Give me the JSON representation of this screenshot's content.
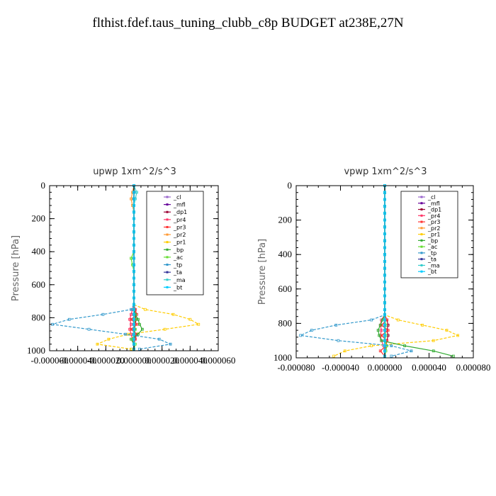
{
  "page_title": "flthist.fdef.taus_tuning_clubb_c8p  BUDGET at238E,27N",
  "chart_data": [
    {
      "type": "line",
      "title": "upwp   1xm^2/s^3",
      "ylabel": "Pressure [hPa]",
      "xlim": [
        -6e-05,
        6e-05
      ],
      "ylim": [
        0,
        1000
      ],
      "y_inverted": true,
      "x_tick_labels": [
        "-0.000060",
        "-0.000040",
        "-0.000020",
        "0.000000",
        "0.000020",
        "0.000040",
        "0.000060"
      ],
      "y_tick_labels": [
        "0",
        "200",
        "400",
        "600",
        "800",
        "1000"
      ],
      "legend_position": "top-right",
      "y": [
        0,
        40,
        80,
        120,
        160,
        200,
        240,
        280,
        320,
        360,
        400,
        440,
        480,
        520,
        560,
        600,
        640,
        680,
        720,
        750,
        780,
        810,
        840,
        870,
        900,
        930,
        960,
        990
      ],
      "series": [
        {
          "name": "_cl",
          "color": "#9966cc",
          "values": [
            0,
            0,
            0,
            0,
            0,
            0,
            0,
            0,
            0,
            0,
            0,
            0,
            0,
            0,
            0,
            0,
            0,
            0,
            0,
            0,
            0,
            0,
            0,
            0,
            0,
            0,
            0,
            0
          ]
        },
        {
          "name": "_mfl",
          "color": "#660099",
          "values": [
            0,
            0,
            0,
            0,
            0,
            0,
            0,
            0,
            0,
            0,
            0,
            0,
            0,
            0,
            0,
            0,
            0,
            0,
            0,
            0,
            0,
            0,
            0,
            0,
            0,
            0,
            0,
            0
          ]
        },
        {
          "name": "_dp1",
          "color": "#990033",
          "values": [
            0,
            0,
            0,
            0,
            0,
            0,
            0,
            0,
            0,
            0,
            0,
            0,
            0,
            0,
            0,
            0,
            0,
            0,
            0,
            5e-07,
            1e-06,
            1.5e-06,
            1e-06,
            5e-07,
            1e-06,
            5e-07,
            0,
            0
          ]
        },
        {
          "name": "_pr4",
          "color": "#ff3366",
          "values": [
            0,
            0,
            0,
            0,
            0,
            0,
            0,
            0,
            0,
            0,
            0,
            0,
            0,
            0,
            0,
            0,
            0,
            0,
            0,
            -1e-06,
            -2e-06,
            -3e-06,
            -2e-06,
            -3e-06,
            -2e-06,
            -1e-06,
            0,
            0
          ]
        },
        {
          "name": "_pr3",
          "color": "#ff3333",
          "values": [
            0,
            0,
            0,
            0,
            0,
            0,
            0,
            0,
            0,
            0,
            0,
            0,
            0,
            0,
            0,
            0,
            0,
            0,
            0,
            1e-06,
            2e-06,
            -2e-06,
            2e-06,
            -2e-06,
            2e-06,
            1e-06,
            0,
            0
          ]
        },
        {
          "name": "_pr2",
          "color": "#ff9933",
          "values": [
            0,
            -1e-06,
            -2e-06,
            -1e-06,
            0,
            0,
            0,
            0,
            0,
            0,
            0,
            0,
            0,
            0,
            0,
            0,
            0,
            0,
            0,
            0,
            0,
            0,
            0,
            0,
            0,
            0,
            0,
            0
          ]
        },
        {
          "name": "_pr1",
          "color": "#ffcc00",
          "values": [
            0,
            0,
            0,
            0,
            0,
            0,
            0,
            0,
            0,
            0,
            0,
            0,
            0,
            0,
            0,
            0,
            0,
            0,
            0,
            8e-06,
            2.8e-05,
            4e-05,
            4.6e-05,
            2.2e-05,
            -4e-06,
            -1.8e-05,
            -2.6e-05,
            -2e-06
          ]
        },
        {
          "name": "_bp",
          "color": "#33aa33",
          "values": [
            0,
            0,
            0,
            0,
            0,
            0,
            0,
            0,
            0,
            0,
            0,
            0,
            0,
            0,
            0,
            0,
            0,
            0,
            0,
            0,
            1e-06,
            3e-06,
            4e-06,
            6e-06,
            3e-06,
            -2e-06,
            0,
            0
          ]
        },
        {
          "name": "_ac",
          "color": "#66dd33",
          "values": [
            0,
            0,
            0,
            0,
            0,
            0,
            0,
            0,
            0,
            0,
            0,
            -2e-06,
            -1e-06,
            0,
            0,
            0,
            0,
            0,
            0,
            0,
            0,
            1e-06,
            0,
            1e-06,
            0,
            -1e-06,
            1e-06,
            0
          ]
        },
        {
          "name": "_tp",
          "color": "#3399cc",
          "values": [
            0,
            0,
            0,
            0,
            0,
            0,
            0,
            0,
            0,
            0,
            0,
            0,
            0,
            0,
            0,
            0,
            0,
            0,
            0,
            -2e-06,
            -2.2e-05,
            -4.6e-05,
            -5.8e-05,
            -3.2e-05,
            -6e-06,
            1.8e-05,
            2.6e-05,
            4e-06
          ]
        },
        {
          "name": "_ta",
          "color": "#333399",
          "values": [
            0,
            0,
            0,
            0,
            0,
            0,
            0,
            0,
            0,
            0,
            0,
            0,
            0,
            0,
            0,
            0,
            0,
            0,
            0,
            0,
            0,
            0,
            0,
            0,
            0,
            0,
            0,
            0
          ]
        },
        {
          "name": "_ma",
          "color": "#33cccc",
          "values": [
            0,
            2e-06,
            1e-06,
            0,
            0,
            0,
            0,
            0,
            0,
            0,
            0,
            0,
            0,
            0,
            0,
            0,
            0,
            0,
            0,
            0,
            0,
            0,
            0,
            0,
            0,
            0,
            0,
            0
          ]
        },
        {
          "name": "_bt",
          "color": "#00ccff",
          "values": [
            0,
            0,
            0,
            0,
            0,
            0,
            0,
            0,
            0,
            0,
            0,
            0,
            0,
            0,
            0,
            0,
            0,
            0,
            0,
            0,
            0,
            0,
            0,
            0,
            0,
            0,
            0,
            0
          ]
        }
      ]
    },
    {
      "type": "line",
      "title": "vpwp   1xm^2/s^3",
      "ylabel": "Pressure [hPa]",
      "xlim": [
        -8e-05,
        8e-05
      ],
      "ylim": [
        0,
        1000
      ],
      "y_inverted": true,
      "x_tick_labels": [
        "-0.000080",
        "-0.000040",
        "0.000000",
        "0.000040",
        "0.000080"
      ],
      "y_tick_labels": [
        "0",
        "200",
        "400",
        "600",
        "800",
        "1000"
      ],
      "legend_position": "top-right",
      "y": [
        0,
        40,
        80,
        120,
        160,
        200,
        240,
        280,
        320,
        360,
        400,
        440,
        480,
        520,
        560,
        600,
        640,
        680,
        720,
        750,
        780,
        810,
        840,
        870,
        900,
        930,
        960,
        990
      ],
      "series": [
        {
          "name": "_cl",
          "color": "#9966cc",
          "values": [
            0,
            0,
            0,
            0,
            0,
            0,
            0,
            0,
            0,
            0,
            0,
            0,
            0,
            0,
            0,
            0,
            0,
            0,
            0,
            0,
            0,
            0,
            0,
            0,
            0,
            0,
            0,
            0
          ]
        },
        {
          "name": "_mfl",
          "color": "#660099",
          "values": [
            0,
            0,
            0,
            0,
            0,
            0,
            0,
            0,
            0,
            0,
            0,
            0,
            0,
            0,
            0,
            0,
            0,
            0,
            0,
            0,
            0,
            0,
            0,
            0,
            0,
            0,
            0,
            0
          ]
        },
        {
          "name": "_dp1",
          "color": "#990033",
          "values": [
            0,
            0,
            0,
            0,
            0,
            0,
            0,
            0,
            0,
            0,
            0,
            0,
            0,
            0,
            0,
            0,
            0,
            0,
            0,
            0,
            2e-06,
            3e-06,
            2e-06,
            3e-06,
            2e-06,
            1e-06,
            0,
            0
          ]
        },
        {
          "name": "_pr4",
          "color": "#ff3366",
          "values": [
            0,
            0,
            0,
            0,
            0,
            0,
            0,
            0,
            0,
            0,
            0,
            0,
            0,
            0,
            0,
            0,
            0,
            0,
            0,
            0,
            -3e-06,
            -4e-06,
            -3e-06,
            -4e-06,
            -3e-06,
            -1e-06,
            0,
            0
          ]
        },
        {
          "name": "_pr3",
          "color": "#ff3333",
          "values": [
            0,
            0,
            0,
            0,
            0,
            0,
            0,
            0,
            0,
            0,
            0,
            0,
            0,
            0,
            0,
            0,
            0,
            0,
            0,
            0,
            2e-06,
            -3e-06,
            3e-06,
            -3e-06,
            2e-06,
            1e-06,
            -4e-06,
            0
          ]
        },
        {
          "name": "_pr2",
          "color": "#ff9933",
          "values": [
            0,
            0,
            0,
            0,
            0,
            0,
            0,
            0,
            0,
            0,
            0,
            0,
            0,
            0,
            0,
            0,
            0,
            0,
            0,
            0,
            0,
            0,
            0,
            0,
            0,
            0,
            0,
            0
          ]
        },
        {
          "name": "_pr1",
          "color": "#ffcc00",
          "values": [
            0,
            0,
            0,
            0,
            0,
            0,
            0,
            0,
            0,
            0,
            0,
            0,
            0,
            0,
            0,
            0,
            0,
            0,
            0,
            0,
            1.2e-05,
            3.4e-05,
            5.6e-05,
            6.6e-05,
            4.4e-05,
            -1.2e-05,
            -3.6e-05,
            -4.6e-05
          ]
        },
        {
          "name": "_bp",
          "color": "#33aa33",
          "values": [
            0,
            0,
            0,
            0,
            0,
            0,
            0,
            0,
            0,
            0,
            0,
            0,
            0,
            0,
            0,
            0,
            0,
            0,
            0,
            0,
            -2e-06,
            -4e-06,
            -6e-06,
            -5e-06,
            -3e-06,
            1.8e-05,
            4.4e-05,
            6.2e-05
          ]
        },
        {
          "name": "_ac",
          "color": "#66dd33",
          "values": [
            0,
            0,
            0,
            0,
            0,
            0,
            0,
            0,
            0,
            0,
            0,
            0,
            0,
            0,
            0,
            0,
            0,
            0,
            0,
            0,
            0,
            1e-06,
            0,
            1e-06,
            0,
            2e-06,
            1e-06,
            0
          ]
        },
        {
          "name": "_tp",
          "color": "#3399cc",
          "values": [
            0,
            0,
            0,
            0,
            0,
            0,
            0,
            0,
            0,
            0,
            0,
            0,
            0,
            0,
            0,
            0,
            0,
            0,
            0,
            0,
            -1.2e-05,
            -4.4e-05,
            -6.6e-05,
            -7.6e-05,
            -4.2e-05,
            6e-06,
            2.4e-05,
            6e-06
          ]
        },
        {
          "name": "_ta",
          "color": "#333399",
          "values": [
            0,
            0,
            0,
            0,
            0,
            0,
            0,
            0,
            0,
            0,
            0,
            0,
            0,
            0,
            0,
            0,
            0,
            0,
            0,
            0,
            0,
            0,
            0,
            0,
            0,
            0,
            0,
            0
          ]
        },
        {
          "name": "_ma",
          "color": "#33cccc",
          "values": [
            0,
            0,
            0,
            0,
            0,
            0,
            0,
            0,
            0,
            0,
            0,
            0,
            0,
            0,
            0,
            0,
            0,
            0,
            0,
            0,
            0,
            0,
            0,
            0,
            0,
            0,
            0,
            0
          ]
        },
        {
          "name": "_bt",
          "color": "#00ccff",
          "values": [
            0,
            0,
            0,
            0,
            0,
            0,
            0,
            0,
            0,
            0,
            0,
            0,
            0,
            0,
            0,
            0,
            0,
            0,
            0,
            0,
            0,
            0,
            0,
            0,
            0,
            0,
            0,
            0
          ]
        }
      ]
    }
  ]
}
